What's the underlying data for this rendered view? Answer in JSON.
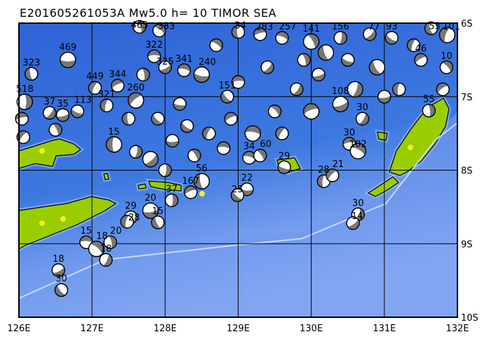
{
  "title": "E201605261053A Mw5.0 h= 10 TIMOR SEA",
  "map": {
    "lon_range": [
      126,
      132
    ],
    "lat_range_south": [
      6,
      10
    ],
    "x_ticks": [
      "126E",
      "127E",
      "128E",
      "129E",
      "130E",
      "131E",
      "132E"
    ],
    "y_ticks": [
      "6S",
      "7S",
      "8S",
      "9S",
      "10S"
    ],
    "colors": {
      "deep_ocean": "#2f63d6",
      "shallow_ocean": "#9db9f7",
      "land": "#9acd00",
      "highland": "#f0f020",
      "mechanism": "#777777",
      "trench": "#c9d6ff"
    }
  },
  "events": [
    [
      126.67,
      6.5,
      "469"
    ],
    [
      126.17,
      6.69,
      "323"
    ],
    [
      127.04,
      6.88,
      "449"
    ],
    [
      127.35,
      6.85,
      "344"
    ],
    [
      128.26,
      6.64,
      "341"
    ],
    [
      126.08,
      7.07,
      "518"
    ],
    [
      126.42,
      7.22,
      "37"
    ],
    [
      126.6,
      7.25,
      "35"
    ],
    [
      126.8,
      7.2,
      "113"
    ],
    [
      127.2,
      7.12,
      "321"
    ],
    [
      127.6,
      7.05,
      "260"
    ],
    [
      127.85,
      6.45,
      "322"
    ],
    [
      127.92,
      6.1,
      "333"
    ],
    [
      127.65,
      6.05,
      "465"
    ],
    [
      128.0,
      6.6,
      "325"
    ],
    [
      128.5,
      6.7,
      "240"
    ],
    [
      128.85,
      7.0,
      "151"
    ],
    [
      129.0,
      6.12,
      "34"
    ],
    [
      129.3,
      6.15,
      "283"
    ],
    [
      129.6,
      6.2,
      "257"
    ],
    [
      130.0,
      6.25,
      "141"
    ],
    [
      130.4,
      6.2,
      "156"
    ],
    [
      130.8,
      6.15,
      "77"
    ],
    [
      131.1,
      6.2,
      "93"
    ],
    [
      131.64,
      6.07,
      "53"
    ],
    [
      131.86,
      6.16,
      "101"
    ],
    [
      131.5,
      6.5,
      "46"
    ],
    [
      131.85,
      6.6,
      "10"
    ],
    [
      131.61,
      7.19,
      "55"
    ],
    [
      130.7,
      7.3,
      "30"
    ],
    [
      130.4,
      7.1,
      "108"
    ],
    [
      129.63,
      7.96,
      "29"
    ],
    [
      130.17,
      8.15,
      "28"
    ],
    [
      130.29,
      8.07,
      "21"
    ],
    [
      130.52,
      7.64,
      "30"
    ],
    [
      130.64,
      7.74,
      "102"
    ],
    [
      130.64,
      8.6,
      "30"
    ],
    [
      130.57,
      8.72,
      "14"
    ],
    [
      129.12,
      8.26,
      "22"
    ],
    [
      128.99,
      8.34,
      "25"
    ],
    [
      128.5,
      8.15,
      "56"
    ],
    [
      128.35,
      8.3,
      "167"
    ],
    [
      129.15,
      7.83,
      "34"
    ],
    [
      129.3,
      7.8,
      "60"
    ],
    [
      128.09,
      8.41,
      "37"
    ],
    [
      127.8,
      8.55,
      "20"
    ],
    [
      127.53,
      8.64,
      "29"
    ],
    [
      127.9,
      8.71,
      "15"
    ],
    [
      127.48,
      8.7,
      "28"
    ],
    [
      126.92,
      8.98,
      "15"
    ],
    [
      127.06,
      9.07,
      "18"
    ],
    [
      127.25,
      8.98,
      "20"
    ],
    [
      127.19,
      9.22,
      "18"
    ],
    [
      126.54,
      9.36,
      "18"
    ],
    [
      126.58,
      9.63,
      "30"
    ],
    [
      127.3,
      7.65,
      "15"
    ],
    [
      126.06,
      7.55,
      ""
    ],
    [
      126.04,
      7.3,
      ""
    ],
    [
      126.5,
      7.45,
      ""
    ],
    [
      127.6,
      7.75,
      ""
    ],
    [
      127.8,
      7.85,
      ""
    ],
    [
      128.1,
      7.6,
      ""
    ],
    [
      128.3,
      7.4,
      ""
    ],
    [
      128.6,
      7.5,
      ""
    ],
    [
      128.9,
      7.3,
      ""
    ],
    [
      129.2,
      7.5,
      ""
    ],
    [
      129.5,
      7.2,
      ""
    ],
    [
      129.8,
      6.9,
      ""
    ],
    [
      130.1,
      6.7,
      ""
    ],
    [
      130.5,
      6.5,
      ""
    ],
    [
      130.9,
      6.6,
      ""
    ],
    [
      131.2,
      6.9,
      ""
    ],
    [
      129.0,
      6.8,
      ""
    ],
    [
      128.7,
      6.3,
      ""
    ],
    [
      129.9,
      6.5,
      ""
    ],
    [
      130.6,
      6.9,
      ""
    ],
    [
      128.2,
      7.1,
      ""
    ],
    [
      127.9,
      7.3,
      ""
    ],
    [
      127.5,
      7.3,
      ""
    ],
    [
      129.6,
      7.5,
      ""
    ],
    [
      130.0,
      7.2,
      ""
    ],
    [
      128.4,
      7.8,
      ""
    ],
    [
      128.0,
      8.0,
      ""
    ],
    [
      129.4,
      6.6,
      ""
    ],
    [
      131.0,
      7.0,
      ""
    ],
    [
      130.2,
      6.4,
      ""
    ],
    [
      131.4,
      6.3,
      ""
    ],
    [
      131.8,
      6.9,
      ""
    ],
    [
      128.8,
      7.7,
      ""
    ],
    [
      127.7,
      6.7,
      ""
    ]
  ]
}
